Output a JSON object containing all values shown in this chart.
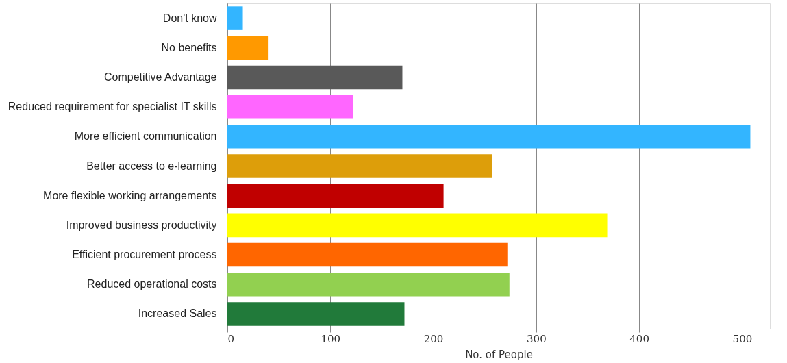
{
  "chart_data": {
    "type": "bar",
    "orientation": "horizontal",
    "xlabel": "No. of People",
    "categories": [
      "Don't know",
      "No benefits",
      "Competitive Advantage",
      "Reduced requirement for specialist IT skills",
      "More efficient communication",
      "Better access to e-learning",
      "More flexible working arrangements",
      "Improved business productivity",
      "Efficient procurement process",
      "Reduced operational costs",
      "Increased Sales"
    ],
    "values": [
      15,
      40,
      170,
      122,
      508,
      257,
      210,
      369,
      272,
      274,
      172
    ],
    "colors": [
      "#33b5ff",
      "#ff9900",
      "#595959",
      "#ff66ff",
      "#33b5ff",
      "#dd9e0a",
      "#c00000",
      "#ffff00",
      "#ff6600",
      "#92d050",
      "#217a3a"
    ],
    "xlim": [
      0,
      527
    ],
    "xticks": [
      0,
      100,
      200,
      300,
      400,
      500
    ],
    "grid": "x",
    "legend": false
  }
}
